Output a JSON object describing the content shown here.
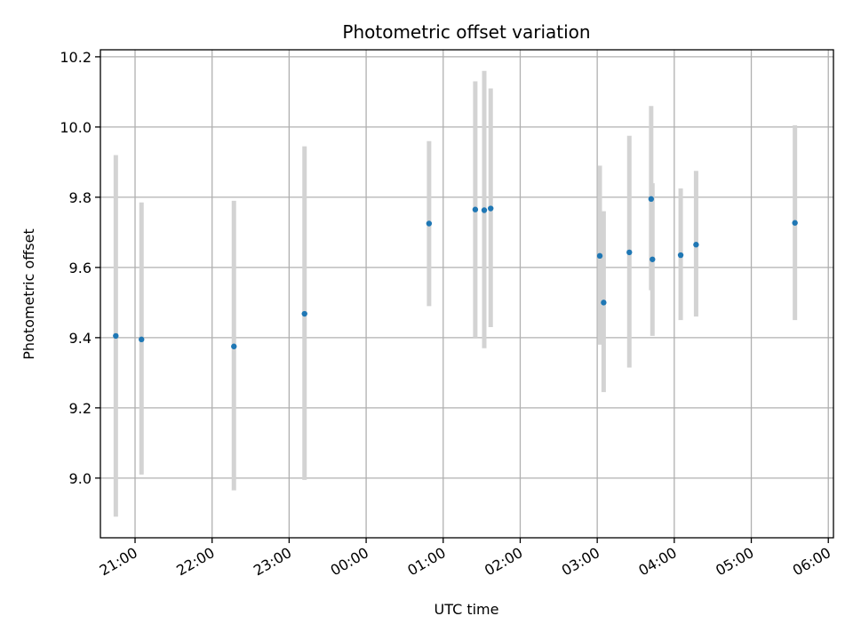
{
  "chart_data": {
    "type": "scatter",
    "title": "Photometric offset variation",
    "xlabel": "UTC time",
    "ylabel": "Photometric offset",
    "xlim": [
      "20:33",
      "06:04"
    ],
    "ylim": [
      8.83,
      10.22
    ],
    "x_ticks": [
      "21:00",
      "22:00",
      "23:00",
      "00:00",
      "01:00",
      "02:00",
      "03:00",
      "04:00",
      "05:00",
      "06:00"
    ],
    "y_ticks": [
      9.0,
      9.2,
      9.4,
      9.6,
      9.8,
      10.0,
      10.2
    ],
    "grid": true,
    "point_color": "#1f77b4",
    "errorbar_color": "#d3d3d3",
    "points": [
      {
        "x": "20:45",
        "y": 9.405,
        "ylow": 8.89,
        "yhigh": 9.92
      },
      {
        "x": "21:05",
        "y": 9.395,
        "ylow": 9.01,
        "yhigh": 9.785
      },
      {
        "x": "22:17",
        "y": 9.375,
        "ylow": 8.965,
        "yhigh": 9.79
      },
      {
        "x": "23:12",
        "y": 9.468,
        "ylow": 8.995,
        "yhigh": 9.945
      },
      {
        "x": "00:49",
        "y": 9.725,
        "ylow": 9.49,
        "yhigh": 9.96
      },
      {
        "x": "01:25",
        "y": 9.765,
        "ylow": 9.4,
        "yhigh": 10.13
      },
      {
        "x": "01:32",
        "y": 9.763,
        "ylow": 9.37,
        "yhigh": 10.16
      },
      {
        "x": "01:37",
        "y": 9.768,
        "ylow": 9.43,
        "yhigh": 10.11
      },
      {
        "x": "03:02",
        "y": 9.633,
        "ylow": 9.38,
        "yhigh": 9.89
      },
      {
        "x": "03:05",
        "y": 9.5,
        "ylow": 9.245,
        "yhigh": 9.76
      },
      {
        "x": "03:25",
        "y": 9.643,
        "ylow": 9.315,
        "yhigh": 9.975
      },
      {
        "x": "03:42",
        "y": 9.795,
        "ylow": 9.535,
        "yhigh": 10.06
      },
      {
        "x": "03:43",
        "y": 9.623,
        "ylow": 9.405,
        "yhigh": 9.84
      },
      {
        "x": "04:05",
        "y": 9.635,
        "ylow": 9.45,
        "yhigh": 9.825
      },
      {
        "x": "04:17",
        "y": 9.665,
        "ylow": 9.46,
        "yhigh": 9.875
      },
      {
        "x": "05:34",
        "y": 9.727,
        "ylow": 9.45,
        "yhigh": 10.005
      }
    ]
  }
}
